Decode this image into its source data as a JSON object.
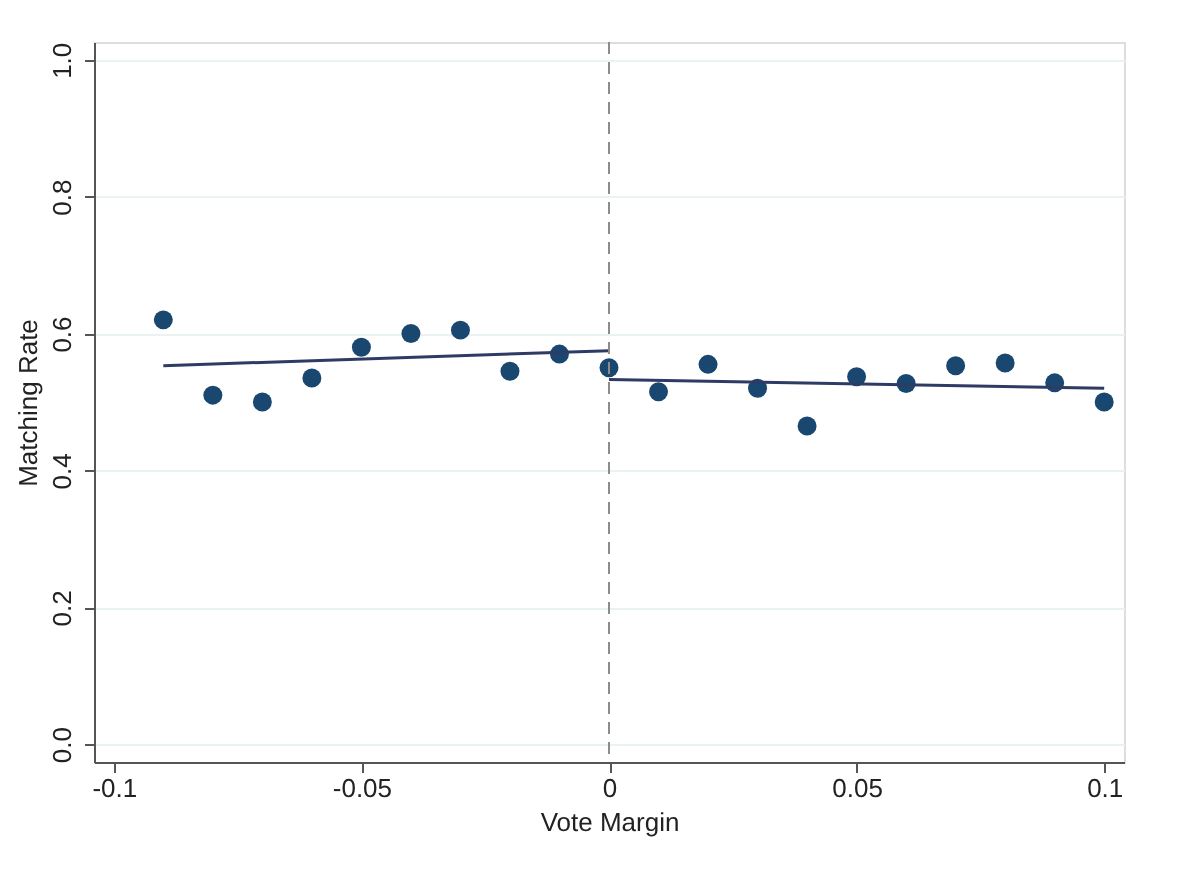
{
  "chart_data": {
    "type": "scatter",
    "xlabel": "Vote Margin",
    "ylabel": "Matching Rate",
    "xlim": [
      -0.104,
      0.104
    ],
    "xticks": [
      -0.1,
      -0.05,
      0,
      0.05,
      0.1
    ],
    "ylim": [
      -0.026,
      1.026
    ],
    "yticks": [
      {
        "value": 0,
        "label": "0.0"
      },
      0.2,
      0.4,
      0.6,
      0.8,
      {
        "value": 1,
        "label": "1.0"
      }
    ],
    "grid": "y",
    "series": [
      {
        "color": "#1a476f",
        "marker": "circle",
        "x": [
          -0.09,
          -0.08,
          -0.07,
          -0.06,
          -0.05,
          -0.04,
          -0.03,
          -0.02,
          -0.01,
          0,
          0.01,
          0.02,
          0.03,
          0.04,
          0.05,
          0.06,
          0.07,
          0.08,
          0.09,
          0.1
        ],
        "values": [
          0.62,
          0.51,
          0.5,
          0.535,
          0.58,
          0.6,
          0.605,
          0.545,
          0.57,
          0.55,
          0.515,
          0.555,
          0.52,
          0.465,
          0.537,
          0.527,
          0.553,
          0.557,
          0.528,
          0.5
        ]
      },
      {
        "type": "line",
        "color": "#2e3b64",
        "x": [
          -0.09,
          0
        ],
        "values": [
          0.553,
          0.575
        ]
      },
      {
        "type": "line",
        "color": "#2e3b64",
        "x": [
          0,
          0.1
        ],
        "values": [
          0.533,
          0.52
        ]
      }
    ],
    "ref_lines": [
      {
        "axis": "x",
        "value": 0,
        "color": "#8c8c8c",
        "line_style": "dashed"
      }
    ]
  }
}
